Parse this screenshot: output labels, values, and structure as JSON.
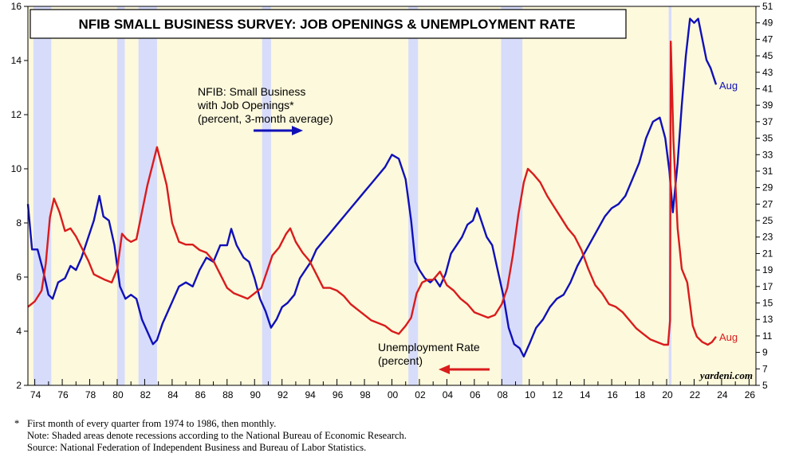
{
  "chart_data": {
    "type": "line",
    "title": "NFIB SMALL BUSINESS SURVEY: JOB OPENINGS & UNEMPLOYMENT RATE",
    "x_range": [
      1973.5,
      2026.5
    ],
    "x_tick_labels": [
      "74",
      "76",
      "78",
      "80",
      "82",
      "84",
      "86",
      "88",
      "90",
      "92",
      "94",
      "96",
      "98",
      "00",
      "02",
      "04",
      "06",
      "08",
      "10",
      "12",
      "14",
      "16",
      "18",
      "20",
      "22",
      "24",
      "26"
    ],
    "y_left": {
      "range": [
        2,
        16
      ],
      "ticks": [
        2,
        4,
        6,
        8,
        10,
        12,
        14,
        16
      ],
      "unit": "percent"
    },
    "y_right": {
      "range": [
        5,
        51
      ],
      "ticks": [
        5,
        7,
        9,
        11,
        13,
        15,
        17,
        19,
        21,
        23,
        25,
        27,
        29,
        31,
        33,
        35,
        37,
        39,
        41,
        43,
        45,
        47,
        49,
        51
      ],
      "unit": "percent"
    },
    "recessions": [
      [
        1973.9,
        1975.2
      ],
      [
        1980.0,
        1980.55
      ],
      [
        1981.55,
        1982.9
      ],
      [
        1990.55,
        1991.2
      ],
      [
        2001.2,
        2001.9
      ],
      [
        2007.95,
        2009.5
      ],
      [
        2020.15,
        2020.35
      ]
    ],
    "series": [
      {
        "name": "NFIB: Small Business with Job Openings* (percent, 3-month average)",
        "axis": "right",
        "color": "#1010b8",
        "end_label": "Aug",
        "points": [
          [
            1973.5,
            27
          ],
          [
            1973.8,
            21.5
          ],
          [
            1974.2,
            21.5
          ],
          [
            1974.6,
            19
          ],
          [
            1975.0,
            16
          ],
          [
            1975.3,
            15.5
          ],
          [
            1975.7,
            17.5
          ],
          [
            1976.2,
            18
          ],
          [
            1976.6,
            19.5
          ],
          [
            1977.0,
            19
          ],
          [
            1977.4,
            20.5
          ],
          [
            1977.8,
            22.5
          ],
          [
            1978.3,
            25
          ],
          [
            1978.7,
            28
          ],
          [
            1979.0,
            25.5
          ],
          [
            1979.4,
            25
          ],
          [
            1979.8,
            22
          ],
          [
            1980.2,
            17
          ],
          [
            1980.6,
            15.5
          ],
          [
            1981.0,
            16
          ],
          [
            1981.4,
            15.5
          ],
          [
            1981.8,
            13
          ],
          [
            1982.2,
            11.5
          ],
          [
            1982.6,
            10
          ],
          [
            1982.9,
            10.5
          ],
          [
            1983.3,
            12.5
          ],
          [
            1983.7,
            14
          ],
          [
            1984.1,
            15.5
          ],
          [
            1984.5,
            17
          ],
          [
            1985.0,
            17.5
          ],
          [
            1985.5,
            17
          ],
          [
            1986.0,
            19
          ],
          [
            1986.5,
            20.5
          ],
          [
            1987.0,
            20
          ],
          [
            1987.5,
            22
          ],
          [
            1988.0,
            22
          ],
          [
            1988.3,
            24
          ],
          [
            1988.7,
            22
          ],
          [
            1989.2,
            20.5
          ],
          [
            1989.6,
            20
          ],
          [
            1990.0,
            18
          ],
          [
            1990.4,
            15.5
          ],
          [
            1990.8,
            14
          ],
          [
            1991.2,
            12
          ],
          [
            1991.6,
            13
          ],
          [
            1992.0,
            14.5
          ],
          [
            1992.4,
            15
          ],
          [
            1992.9,
            16
          ],
          [
            1993.3,
            18
          ],
          [
            1993.7,
            19
          ],
          [
            1994.1,
            20
          ],
          [
            1994.5,
            21.5
          ],
          [
            1995.0,
            22.5
          ],
          [
            1995.5,
            23.5
          ],
          [
            1996.0,
            24.5
          ],
          [
            1996.5,
            25.5
          ],
          [
            1997.0,
            26.5
          ],
          [
            1997.5,
            27.5
          ],
          [
            1998.0,
            28.5
          ],
          [
            1998.5,
            29.5
          ],
          [
            1999.0,
            30.5
          ],
          [
            1999.5,
            31.5
          ],
          [
            2000.0,
            33
          ],
          [
            2000.5,
            32.5
          ],
          [
            2001.0,
            30
          ],
          [
            2001.4,
            25
          ],
          [
            2001.7,
            20
          ],
          [
            2002.0,
            19
          ],
          [
            2002.4,
            18
          ],
          [
            2002.8,
            17.5
          ],
          [
            2003.1,
            18
          ],
          [
            2003.5,
            17
          ],
          [
            2003.9,
            18.5
          ],
          [
            2004.3,
            21
          ],
          [
            2004.7,
            22
          ],
          [
            2005.1,
            23
          ],
          [
            2005.5,
            24.5
          ],
          [
            2005.9,
            25
          ],
          [
            2006.2,
            26.5
          ],
          [
            2006.5,
            25
          ],
          [
            2006.9,
            23
          ],
          [
            2007.3,
            22
          ],
          [
            2007.7,
            19
          ],
          [
            2008.1,
            16
          ],
          [
            2008.5,
            12
          ],
          [
            2008.9,
            10
          ],
          [
            2009.3,
            9.5
          ],
          [
            2009.6,
            8.5
          ],
          [
            2010.0,
            10
          ],
          [
            2010.5,
            12
          ],
          [
            2011.0,
            13
          ],
          [
            2011.5,
            14.5
          ],
          [
            2012.0,
            15.5
          ],
          [
            2012.5,
            16
          ],
          [
            2013.0,
            17.5
          ],
          [
            2013.5,
            19.5
          ],
          [
            2014.0,
            21
          ],
          [
            2014.5,
            22.5
          ],
          [
            2015.0,
            24
          ],
          [
            2015.5,
            25.5
          ],
          [
            2016.0,
            26.5
          ],
          [
            2016.5,
            27
          ],
          [
            2017.0,
            28
          ],
          [
            2017.5,
            30
          ],
          [
            2018.0,
            32
          ],
          [
            2018.5,
            35
          ],
          [
            2019.0,
            37
          ],
          [
            2019.5,
            37.5
          ],
          [
            2019.9,
            35
          ],
          [
            2020.2,
            31
          ],
          [
            2020.45,
            26
          ],
          [
            2020.8,
            32
          ],
          [
            2021.1,
            39
          ],
          [
            2021.4,
            45
          ],
          [
            2021.7,
            49.5
          ],
          [
            2022.0,
            49
          ],
          [
            2022.3,
            49.5
          ],
          [
            2022.6,
            47
          ],
          [
            2022.9,
            44.5
          ],
          [
            2023.2,
            43.5
          ],
          [
            2023.6,
            41.5
          ]
        ]
      },
      {
        "name": "Unemployment Rate (percent)",
        "axis": "left",
        "color": "#d91c1c",
        "end_label": "Aug",
        "points": [
          [
            1973.5,
            4.9
          ],
          [
            1974.0,
            5.1
          ],
          [
            1974.5,
            5.5
          ],
          [
            1974.8,
            6.5
          ],
          [
            1975.1,
            8.2
          ],
          [
            1975.4,
            8.9
          ],
          [
            1975.8,
            8.4
          ],
          [
            1976.2,
            7.7
          ],
          [
            1976.6,
            7.8
          ],
          [
            1977.0,
            7.5
          ],
          [
            1977.5,
            7.0
          ],
          [
            1977.9,
            6.6
          ],
          [
            1978.3,
            6.1
          ],
          [
            1978.7,
            6.0
          ],
          [
            1979.1,
            5.9
          ],
          [
            1979.6,
            5.8
          ],
          [
            1980.0,
            6.3
          ],
          [
            1980.35,
            7.6
          ],
          [
            1980.7,
            7.4
          ],
          [
            1981.0,
            7.3
          ],
          [
            1981.4,
            7.4
          ],
          [
            1981.8,
            8.4
          ],
          [
            1982.2,
            9.4
          ],
          [
            1982.6,
            10.2
          ],
          [
            1982.9,
            10.8
          ],
          [
            1983.2,
            10.2
          ],
          [
            1983.6,
            9.4
          ],
          [
            1984.0,
            8.0
          ],
          [
            1984.5,
            7.3
          ],
          [
            1985.0,
            7.2
          ],
          [
            1985.5,
            7.2
          ],
          [
            1986.0,
            7.0
          ],
          [
            1986.5,
            6.9
          ],
          [
            1987.0,
            6.6
          ],
          [
            1987.5,
            6.1
          ],
          [
            1988.0,
            5.6
          ],
          [
            1988.5,
            5.4
          ],
          [
            1989.0,
            5.3
          ],
          [
            1989.5,
            5.2
          ],
          [
            1990.0,
            5.4
          ],
          [
            1990.5,
            5.6
          ],
          [
            1990.9,
            6.2
          ],
          [
            1991.3,
            6.8
          ],
          [
            1991.8,
            7.1
          ],
          [
            1992.3,
            7.6
          ],
          [
            1992.6,
            7.8
          ],
          [
            1993.0,
            7.3
          ],
          [
            1993.5,
            6.9
          ],
          [
            1994.0,
            6.6
          ],
          [
            1994.5,
            6.1
          ],
          [
            1995.0,
            5.6
          ],
          [
            1995.5,
            5.6
          ],
          [
            1996.0,
            5.5
          ],
          [
            1996.5,
            5.3
          ],
          [
            1997.0,
            5.0
          ],
          [
            1997.5,
            4.8
          ],
          [
            1998.0,
            4.6
          ],
          [
            1998.5,
            4.4
          ],
          [
            1999.0,
            4.3
          ],
          [
            1999.5,
            4.2
          ],
          [
            2000.0,
            4.0
          ],
          [
            2000.5,
            3.9
          ],
          [
            2001.0,
            4.2
          ],
          [
            2001.4,
            4.5
          ],
          [
            2001.8,
            5.4
          ],
          [
            2002.2,
            5.8
          ],
          [
            2002.6,
            5.9
          ],
          [
            2003.0,
            5.9
          ],
          [
            2003.5,
            6.2
          ],
          [
            2004.0,
            5.7
          ],
          [
            2004.5,
            5.5
          ],
          [
            2005.0,
            5.2
          ],
          [
            2005.5,
            5.0
          ],
          [
            2006.0,
            4.7
          ],
          [
            2006.5,
            4.6
          ],
          [
            2007.0,
            4.5
          ],
          [
            2007.5,
            4.6
          ],
          [
            2008.0,
            5.0
          ],
          [
            2008.4,
            5.6
          ],
          [
            2008.8,
            6.8
          ],
          [
            2009.2,
            8.3
          ],
          [
            2009.6,
            9.5
          ],
          [
            2009.9,
            10.0
          ],
          [
            2010.3,
            9.8
          ],
          [
            2010.8,
            9.5
          ],
          [
            2011.3,
            9.0
          ],
          [
            2011.8,
            8.6
          ],
          [
            2012.3,
            8.2
          ],
          [
            2012.8,
            7.8
          ],
          [
            2013.3,
            7.5
          ],
          [
            2013.8,
            7.0
          ],
          [
            2014.3,
            6.3
          ],
          [
            2014.8,
            5.7
          ],
          [
            2015.3,
            5.4
          ],
          [
            2015.8,
            5.0
          ],
          [
            2016.3,
            4.9
          ],
          [
            2016.8,
            4.7
          ],
          [
            2017.3,
            4.4
          ],
          [
            2017.8,
            4.1
          ],
          [
            2018.3,
            3.9
          ],
          [
            2018.8,
            3.7
          ],
          [
            2019.3,
            3.6
          ],
          [
            2019.8,
            3.5
          ],
          [
            2020.1,
            3.5
          ],
          [
            2020.25,
            4.4
          ],
          [
            2020.3,
            14.7
          ],
          [
            2020.5,
            11.0
          ],
          [
            2020.8,
            7.8
          ],
          [
            2021.1,
            6.3
          ],
          [
            2021.5,
            5.8
          ],
          [
            2021.9,
            4.2
          ],
          [
            2022.2,
            3.8
          ],
          [
            2022.6,
            3.6
          ],
          [
            2023.0,
            3.5
          ],
          [
            2023.3,
            3.6
          ],
          [
            2023.6,
            3.8
          ]
        ]
      }
    ],
    "annotations": {
      "job_openings_label": [
        "NFIB: Small Business",
        "with Job Openings*",
        "(percent, 3-month average)"
      ],
      "unemployment_label": [
        "Unemployment Rate",
        "(percent)"
      ],
      "end_label": "Aug",
      "source_mark": "yardeni.com"
    }
  },
  "footnotes": [
    "First month of every quarter from 1974 to 1986, then monthly.",
    "Note: Shaded areas denote recessions according to the National Bureau of Economic Research.",
    "Source: National Federation of Independent Business and Bureau of Labor Statistics."
  ],
  "footnote_marker": "*",
  "colors": {
    "background": "#fdf9dc",
    "recession": "#d7dcfb",
    "blue": "#1010b8",
    "red": "#d91c1c"
  }
}
